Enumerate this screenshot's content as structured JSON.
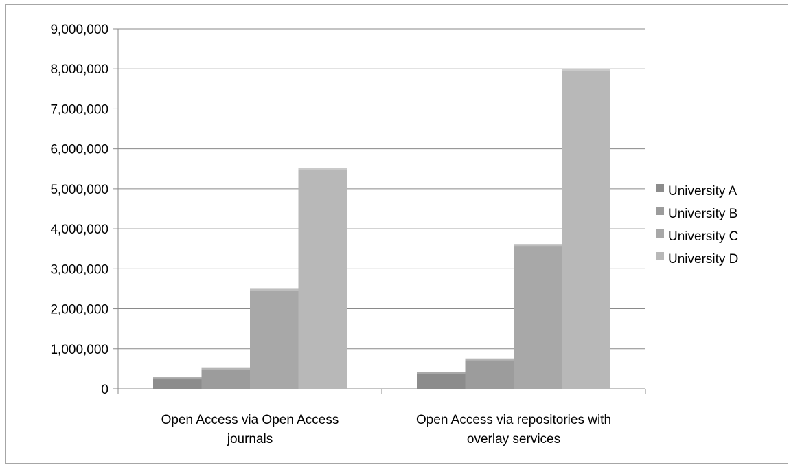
{
  "chart_data": {
    "type": "bar",
    "categories": [
      "Open Access via Open Access journals",
      "Open Access via repositories with overlay services"
    ],
    "category_label_lines": [
      [
        "Open Access via Open Access",
        "journals"
      ],
      [
        "Open Access via repositories with",
        "overlay services"
      ]
    ],
    "series": [
      {
        "name": "University A",
        "values": [
          290000,
          420000
        ],
        "color": "#8c8c8c"
      },
      {
        "name": "University B",
        "values": [
          520000,
          760000
        ],
        "color": "#9c9c9c"
      },
      {
        "name": "University C",
        "values": [
          2500000,
          3620000
        ],
        "color": "#a8a8a8"
      },
      {
        "name": "University D",
        "values": [
          5520000,
          8000000
        ],
        "color": "#b8b8b8"
      }
    ],
    "y_ticks": [
      "0",
      "1,000,000",
      "2,000,000",
      "3,000,000",
      "4,000,000",
      "5,000,000",
      "6,000,000",
      "7,000,000",
      "8,000,000",
      "9,000,000"
    ],
    "ylim": [
      0,
      9000000
    ],
    "grid": true,
    "legend_position": "right",
    "title": "",
    "xlabel": "",
    "ylabel": ""
  }
}
